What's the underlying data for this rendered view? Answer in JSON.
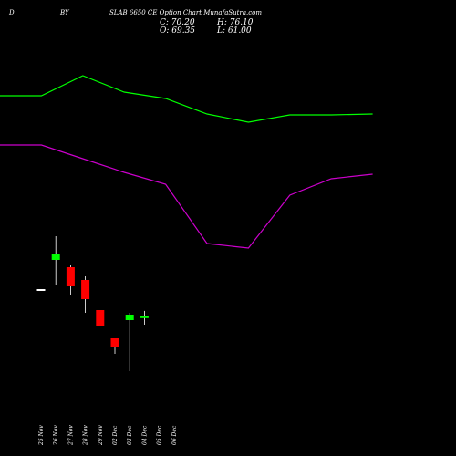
{
  "header": {
    "left_letter": "D",
    "middle_code": "BY",
    "title": "SLAB 6650 CE Option  Chart MunafaSutra.com",
    "close_label": "C: 70.20",
    "high_label": "H: 76.10",
    "open_label": "O: 69.35",
    "low_label": "L: 61.00"
  },
  "chart_data": {
    "type": "candlestick",
    "categories": [
      "25 Nov",
      "26 Nov",
      "27 Nov",
      "28 Nov",
      "29 Nov",
      "02 Dec",
      "03 Dec",
      "04 Dec",
      "05 Dec",
      "06 Dec"
    ],
    "x_labels": [
      "25 Nov",
      "26 Nov",
      "27 Nov",
      "28 Nov",
      "29 Nov",
      "02 Dec",
      "03 Dec",
      "04 Dec",
      "05 Dec",
      "06 Dec"
    ],
    "candles": [
      {
        "date": "25 Nov",
        "open": 100.0,
        "close": 99.5,
        "high": 100.0,
        "low": 99.5,
        "color": "#ffffff"
      },
      {
        "date": "26 Nov",
        "open": 132.0,
        "close": 138.0,
        "high": 158.0,
        "low": 104.0,
        "color": "#00ff00"
      },
      {
        "date": "27 Nov",
        "open": 124.0,
        "close": 103.0,
        "high": 126.0,
        "low": 93.0,
        "color": "#ff0000"
      },
      {
        "date": "28 Nov",
        "open": 110.0,
        "close": 89.0,
        "high": 114.0,
        "low": 74.0,
        "color": "#ff0000"
      },
      {
        "date": "29 Nov",
        "open": 77.0,
        "close": 60.0,
        "high": 77.0,
        "low": 60.0,
        "color": "#ff0000"
      },
      {
        "date": "02 Dec",
        "open": 46.0,
        "close": 37.0,
        "high": 46.0,
        "low": 29.0,
        "color": "#ff0000"
      },
      {
        "date": "03 Dec",
        "open": 66.0,
        "close": 72.0,
        "high": 74.0,
        "low": 10.0,
        "color": "#00ff00"
      },
      {
        "date": "04 Dec",
        "open": 69.35,
        "close": 70.2,
        "high": 76.1,
        "low": 61.0,
        "color": "#00ff00"
      }
    ],
    "series": [
      {
        "values": [
          362,
          362,
          384,
          366,
          359,
          342,
          333,
          341,
          341,
          342
        ],
        "color": "#00ff00"
      },
      {
        "values": [
          308,
          308,
          293,
          278,
          265,
          200,
          195,
          253,
          271,
          276
        ],
        "color": "#cc00cc"
      }
    ],
    "ylim": [
      0,
      400
    ],
    "background": "#000000"
  }
}
